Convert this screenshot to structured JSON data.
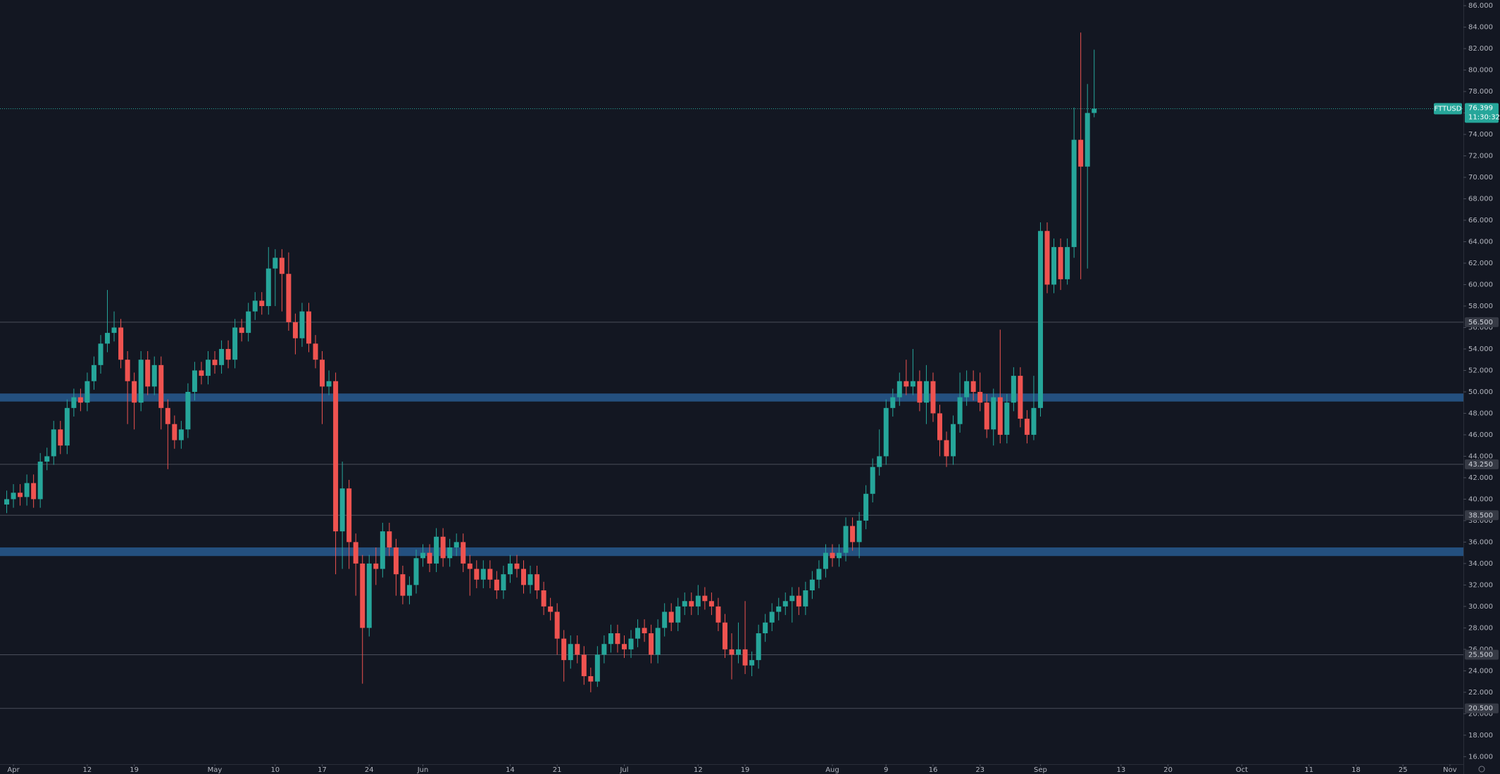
{
  "chart_data": {
    "type": "candlestick",
    "symbol": "FTTUSD",
    "x": [
      "Mar 31",
      "Apr 1",
      "Apr 2",
      "Apr 3",
      "Apr 4",
      "Apr 5",
      "Apr 6",
      "Apr 7",
      "Apr 8",
      "Apr 9",
      "Apr 10",
      "Apr 11",
      "Apr 12",
      "Apr 13",
      "Apr 14",
      "Apr 15",
      "Apr 16",
      "Apr 17",
      "Apr 18",
      "Apr 19",
      "Apr 20",
      "Apr 21",
      "Apr 22",
      "Apr 23",
      "Apr 24",
      "Apr 25",
      "Apr 26",
      "Apr 27",
      "Apr 28",
      "Apr 29",
      "Apr 30",
      "May 1",
      "May 2",
      "May 3",
      "May 4",
      "May 5",
      "May 6",
      "May 7",
      "May 8",
      "May 9",
      "May 10",
      "May 11",
      "May 12",
      "May 13",
      "May 14",
      "May 15",
      "May 16",
      "May 17",
      "May 18",
      "May 19",
      "May 20",
      "May 21",
      "May 22",
      "May 23",
      "May 24",
      "May 25",
      "May 26",
      "May 27",
      "May 28",
      "May 29",
      "May 30",
      "May 31",
      "Jun 1",
      "Jun 2",
      "Jun 3",
      "Jun 4",
      "Jun 5",
      "Jun 6",
      "Jun 7",
      "Jun 8",
      "Jun 9",
      "Jun 10",
      "Jun 11",
      "Jun 12",
      "Jun 13",
      "Jun 14",
      "Jun 15",
      "Jun 16",
      "Jun 17",
      "Jun 18",
      "Jun 19",
      "Jun 20",
      "Jun 21",
      "Jun 22",
      "Jun 23",
      "Jun 24",
      "Jun 25",
      "Jun 26",
      "Jun 27",
      "Jun 28",
      "Jun 29",
      "Jun 30",
      "Jul 1",
      "Jul 2",
      "Jul 3",
      "Jul 4",
      "Jul 5",
      "Jul 6",
      "Jul 7",
      "Jul 8",
      "Jul 9",
      "Jul 10",
      "Jul 11",
      "Jul 12",
      "Jul 13",
      "Jul 14",
      "Jul 15",
      "Jul 16",
      "Jul 17",
      "Jul 18",
      "Jul 19",
      "Jul 20",
      "Jul 21",
      "Jul 22",
      "Jul 23",
      "Jul 24",
      "Jul 25",
      "Jul 26",
      "Jul 27",
      "Jul 28",
      "Jul 29",
      "Jul 30",
      "Jul 31",
      "Aug 1",
      "Aug 2",
      "Aug 3",
      "Aug 4",
      "Aug 5",
      "Aug 6",
      "Aug 7",
      "Aug 8",
      "Aug 9",
      "Aug 10",
      "Aug 11",
      "Aug 12",
      "Aug 13",
      "Aug 14",
      "Aug 15",
      "Aug 16",
      "Aug 17",
      "Aug 18",
      "Aug 19",
      "Aug 20",
      "Aug 21",
      "Aug 22",
      "Aug 23",
      "Aug 24",
      "Aug 25",
      "Aug 26",
      "Aug 27",
      "Aug 28",
      "Aug 29",
      "Aug 30",
      "Aug 31",
      "Sep 1",
      "Sep 2",
      "Sep 3",
      "Sep 4",
      "Sep 5",
      "Sep 6",
      "Sep 7",
      "Sep 8",
      "Sep 9"
    ],
    "open": [
      39.5,
      40.0,
      40.6,
      40.2,
      41.5,
      40.0,
      43.5,
      44.0,
      46.5,
      45.0,
      48.5,
      49.5,
      49.0,
      51.0,
      52.5,
      54.5,
      55.5,
      56.0,
      53.0,
      51.0,
      49.0,
      53.0,
      50.5,
      52.5,
      48.5,
      47.0,
      45.5,
      46.5,
      50.0,
      52.0,
      51.5,
      53.0,
      52.5,
      54.0,
      53.0,
      56.0,
      55.5,
      57.5,
      58.5,
      58.0,
      61.5,
      62.5,
      61.0,
      56.5,
      55.0,
      57.5,
      54.5,
      53.0,
      50.5,
      51.0,
      37.0,
      41.0,
      36.0,
      34.0,
      28.0,
      34.0,
      33.5,
      37.0,
      35.5,
      33.0,
      31.0,
      32.0,
      34.5,
      35.0,
      34.0,
      36.5,
      34.5,
      35.5,
      36.0,
      34.0,
      33.5,
      32.5,
      33.5,
      32.5,
      31.5,
      33.0,
      34.0,
      33.5,
      32.0,
      33.0,
      31.5,
      30.0,
      29.5,
      27.0,
      25.0,
      26.5,
      25.5,
      23.5,
      23.0,
      25.5,
      26.5,
      27.5,
      26.5,
      26.0,
      27.0,
      28.0,
      27.5,
      25.5,
      28.0,
      29.5,
      28.5,
      30.0,
      30.5,
      30.0,
      31.0,
      30.5,
      30.0,
      28.5,
      26.0,
      25.5,
      26.0,
      24.5,
      25.0,
      27.5,
      28.5,
      29.5,
      30.0,
      30.5,
      31.0,
      30.0,
      31.5,
      32.5,
      33.5,
      35.0,
      34.5,
      35.0,
      37.5,
      36.0,
      38.0,
      40.5,
      43.0,
      44.0,
      48.5,
      49.5,
      51.0,
      50.5,
      51.0,
      49.0,
      51.0,
      48.0,
      45.5,
      44.0,
      47.0,
      49.5,
      51.0,
      50.0,
      49.0,
      46.5,
      49.5,
      46.0,
      49.0,
      51.5,
      47.5,
      46.0,
      48.5,
      65.0,
      60.0,
      63.5,
      60.5,
      63.5,
      73.5,
      71.0,
      76.0
    ],
    "high": [
      40.8,
      41.4,
      41.4,
      42.3,
      42.3,
      44.3,
      44.8,
      47.3,
      47.3,
      49.3,
      50.3,
      50.3,
      51.8,
      53.3,
      55.3,
      59.5,
      57.5,
      56.8,
      53.8,
      51.8,
      53.8,
      53.8,
      53.3,
      53.3,
      49.3,
      47.8,
      47.3,
      50.8,
      52.8,
      52.8,
      53.8,
      53.8,
      54.8,
      54.8,
      56.8,
      56.8,
      58.3,
      59.3,
      59.3,
      63.5,
      63.3,
      63.3,
      63.0,
      57.3,
      58.3,
      58.3,
      55.3,
      53.8,
      52.0,
      51.8,
      43.5,
      41.8,
      36.8,
      34.8,
      34.8,
      35.5,
      37.8,
      37.8,
      36.3,
      33.8,
      32.8,
      35.3,
      35.8,
      35.8,
      37.3,
      37.3,
      36.3,
      36.8,
      36.8,
      34.8,
      34.3,
      34.3,
      34.3,
      33.3,
      33.8,
      34.8,
      34.8,
      34.3,
      33.8,
      33.8,
      32.3,
      30.8,
      30.3,
      27.8,
      27.3,
      27.3,
      26.3,
      24.3,
      26.3,
      27.3,
      28.3,
      28.3,
      27.3,
      27.8,
      28.8,
      28.8,
      28.3,
      28.8,
      30.3,
      30.3,
      30.8,
      31.3,
      31.3,
      32.0,
      31.8,
      31.3,
      30.8,
      29.3,
      27.5,
      28.5,
      30.5,
      25.8,
      28.3,
      29.3,
      30.3,
      30.8,
      31.3,
      31.8,
      31.8,
      32.3,
      33.3,
      34.3,
      35.8,
      35.8,
      35.8,
      38.3,
      38.3,
      38.8,
      41.3,
      43.8,
      46.5,
      49.3,
      50.3,
      51.8,
      53.0,
      54.0,
      52.0,
      52.5,
      51.8,
      48.8,
      46.3,
      47.8,
      51.8,
      52.0,
      52.0,
      51.8,
      49.8,
      50.3,
      55.8,
      49.8,
      52.3,
      52.3,
      48.3,
      51.5,
      65.8,
      65.8,
      64.3,
      64.3,
      64.3,
      76.5,
      83.5,
      78.7,
      81.9
    ],
    "low": [
      38.7,
      39.2,
      39.4,
      39.4,
      39.2,
      39.2,
      42.7,
      43.2,
      44.2,
      44.2,
      47.7,
      48.2,
      48.2,
      50.2,
      51.7,
      53.7,
      54.7,
      52.2,
      47.0,
      46.5,
      48.2,
      49.7,
      49.7,
      46.5,
      42.8,
      44.7,
      44.7,
      45.7,
      49.2,
      50.7,
      50.7,
      51.7,
      51.7,
      52.2,
      52.2,
      54.7,
      54.7,
      56.7,
      57.2,
      57.2,
      58.0,
      57.5,
      55.7,
      53.5,
      54.2,
      53.7,
      52.2,
      47.0,
      49.7,
      33.0,
      33.5,
      33.5,
      31.0,
      22.8,
      27.2,
      32.0,
      32.7,
      34.7,
      31.0,
      30.2,
      30.2,
      31.2,
      33.7,
      33.2,
      33.2,
      33.7,
      33.7,
      34.7,
      33.2,
      31.0,
      31.7,
      31.7,
      31.7,
      30.7,
      30.7,
      32.2,
      32.7,
      31.2,
      31.2,
      30.7,
      29.2,
      28.7,
      25.5,
      23.0,
      24.2,
      24.7,
      22.7,
      22.0,
      22.5,
      24.7,
      25.7,
      25.7,
      25.2,
      25.2,
      26.2,
      26.7,
      24.7,
      24.7,
      27.2,
      27.7,
      27.7,
      29.2,
      29.2,
      29.2,
      29.7,
      29.2,
      27.7,
      25.2,
      23.2,
      24.7,
      23.7,
      23.5,
      24.2,
      26.7,
      27.7,
      28.7,
      29.2,
      28.5,
      29.2,
      29.2,
      30.7,
      31.7,
      32.7,
      33.7,
      33.7,
      34.2,
      35.2,
      34.5,
      37.2,
      39.7,
      42.2,
      43.2,
      47.7,
      48.7,
      49.7,
      49.7,
      48.2,
      47.0,
      47.2,
      44.0,
      43.0,
      43.2,
      46.2,
      48.7,
      49.2,
      48.2,
      45.7,
      45.0,
      45.2,
      45.2,
      48.2,
      46.7,
      45.2,
      45.5,
      47.7,
      59.2,
      59.2,
      59.5,
      60.0,
      62.5,
      60.5,
      61.5,
      75.6
    ],
    "close": [
      40.0,
      40.6,
      40.2,
      41.5,
      40.0,
      43.5,
      44.0,
      46.5,
      45.0,
      48.5,
      49.5,
      49.0,
      51.0,
      52.5,
      54.5,
      55.5,
      56.0,
      53.0,
      51.0,
      49.0,
      53.0,
      50.5,
      52.5,
      48.5,
      47.0,
      45.5,
      46.5,
      50.0,
      52.0,
      51.5,
      53.0,
      52.5,
      54.0,
      53.0,
      56.0,
      55.5,
      57.5,
      58.5,
      58.0,
      61.5,
      62.5,
      61.0,
      56.5,
      55.0,
      57.5,
      54.5,
      53.0,
      50.5,
      51.0,
      37.0,
      41.0,
      36.0,
      34.0,
      28.0,
      34.0,
      33.5,
      37.0,
      35.5,
      33.0,
      31.0,
      32.0,
      34.5,
      35.0,
      34.0,
      36.5,
      34.5,
      35.5,
      36.0,
      34.0,
      33.5,
      32.5,
      33.5,
      32.5,
      31.5,
      33.0,
      34.0,
      33.5,
      32.0,
      33.0,
      31.5,
      30.0,
      29.5,
      27.0,
      25.0,
      26.5,
      25.5,
      23.5,
      23.0,
      25.5,
      26.5,
      27.5,
      26.5,
      26.0,
      27.0,
      28.0,
      27.5,
      25.5,
      28.0,
      29.5,
      28.5,
      30.0,
      30.5,
      30.0,
      31.0,
      30.5,
      30.0,
      28.5,
      26.0,
      25.5,
      26.0,
      24.5,
      25.0,
      27.5,
      28.5,
      29.5,
      30.0,
      30.5,
      31.0,
      30.0,
      31.5,
      32.5,
      33.5,
      35.0,
      34.5,
      35.0,
      37.5,
      36.0,
      38.0,
      40.5,
      43.0,
      44.0,
      48.5,
      49.5,
      51.0,
      50.5,
      51.0,
      49.0,
      51.0,
      48.0,
      45.5,
      44.0,
      47.0,
      49.5,
      51.0,
      50.0,
      49.0,
      46.5,
      49.5,
      46.0,
      49.0,
      51.5,
      47.5,
      46.0,
      48.5,
      65.0,
      60.0,
      63.5,
      60.5,
      63.5,
      73.5,
      71.0,
      76.0,
      76.399
    ],
    "up_color": "#26a69a",
    "down_color": "#ef5350",
    "ylim": [
      15.3,
      86.53
    ],
    "yticks": [
      {
        "value": 86,
        "label": "86.000"
      },
      {
        "value": 84,
        "label": "84.000"
      },
      {
        "value": 82,
        "label": "82.000"
      },
      {
        "value": 80,
        "label": "80.000"
      },
      {
        "value": 78,
        "label": "78.000"
      },
      {
        "value": 76,
        "label": "76.000"
      },
      {
        "value": 74,
        "label": "74.000"
      },
      {
        "value": 72,
        "label": "72.000"
      },
      {
        "value": 70,
        "label": "70.000"
      },
      {
        "value": 68,
        "label": "68.000"
      },
      {
        "value": 66,
        "label": "66.000"
      },
      {
        "value": 64,
        "label": "64.000"
      },
      {
        "value": 62,
        "label": "62.000"
      },
      {
        "value": 60,
        "label": "60.000"
      },
      {
        "value": 58,
        "label": "58.000"
      },
      {
        "value": 56,
        "label": "56.000"
      },
      {
        "value": 54,
        "label": "54.000"
      },
      {
        "value": 52,
        "label": "52.000"
      },
      {
        "value": 50,
        "label": "50.000"
      },
      {
        "value": 48,
        "label": "48.000"
      },
      {
        "value": 46,
        "label": "46.000"
      },
      {
        "value": 44,
        "label": "44.000"
      },
      {
        "value": 42,
        "label": "42.000"
      },
      {
        "value": 40,
        "label": "40.000"
      },
      {
        "value": 38,
        "label": "38.000"
      },
      {
        "value": 36,
        "label": "36.000"
      },
      {
        "value": 34,
        "label": "34.000"
      },
      {
        "value": 32,
        "label": "32.000"
      },
      {
        "value": 30,
        "label": "30.000"
      },
      {
        "value": 28,
        "label": "28.000"
      },
      {
        "value": 26,
        "label": "26.000"
      },
      {
        "value": 24,
        "label": "24.000"
      },
      {
        "value": 22,
        "label": "22.000"
      },
      {
        "value": 20,
        "label": "20.000"
      },
      {
        "value": 18,
        "label": "18.000"
      },
      {
        "value": 16,
        "label": "16.000"
      }
    ],
    "xlim": [
      "Mar 30",
      "Nov 3"
    ],
    "xticks": [
      {
        "value": "Apr 1",
        "label": "Apr"
      },
      {
        "value": "Apr 12",
        "label": "12"
      },
      {
        "value": "Apr 19",
        "label": "19"
      },
      {
        "value": "May 1",
        "label": "May"
      },
      {
        "value": "May 10",
        "label": "10"
      },
      {
        "value": "May 17",
        "label": "17"
      },
      {
        "value": "May 24",
        "label": "24"
      },
      {
        "value": "Jun 1",
        "label": "Jun"
      },
      {
        "value": "Jun 14",
        "label": "14"
      },
      {
        "value": "Jun 21",
        "label": "21"
      },
      {
        "value": "Jul 1",
        "label": "Jul"
      },
      {
        "value": "Jul 12",
        "label": "12"
      },
      {
        "value": "Jul 19",
        "label": "19"
      },
      {
        "value": "Aug 1",
        "label": "Aug"
      },
      {
        "value": "Aug 9",
        "label": "9"
      },
      {
        "value": "Aug 16",
        "label": "16"
      },
      {
        "value": "Aug 23",
        "label": "23"
      },
      {
        "value": "Sep 1",
        "label": "Sep"
      },
      {
        "value": "Sep 13",
        "label": "13"
      },
      {
        "value": "Sep 20",
        "label": "20"
      },
      {
        "value": "Oct 1",
        "label": "Oct"
      },
      {
        "value": "Oct 11",
        "label": "11"
      },
      {
        "value": "Oct 18",
        "label": "18"
      },
      {
        "value": "Oct 25",
        "label": "25"
      },
      {
        "value": "Nov 1",
        "label": "Nov"
      }
    ],
    "levels": [
      {
        "value": 56.5,
        "label": "56.500"
      },
      {
        "value": 43.25,
        "label": "43.250"
      },
      {
        "value": 38.5,
        "label": "38.500"
      },
      {
        "value": 25.5,
        "label": "25.500"
      },
      {
        "value": 20.5,
        "label": "20.500"
      }
    ],
    "zones": [
      {
        "from": 49.1,
        "to": 49.85
      },
      {
        "from": 34.7,
        "to": 35.5
      }
    ],
    "zone_color": "#24507f",
    "last_price": {
      "value": 76.399,
      "label": "76.399"
    },
    "countdown": "11:30:32"
  }
}
